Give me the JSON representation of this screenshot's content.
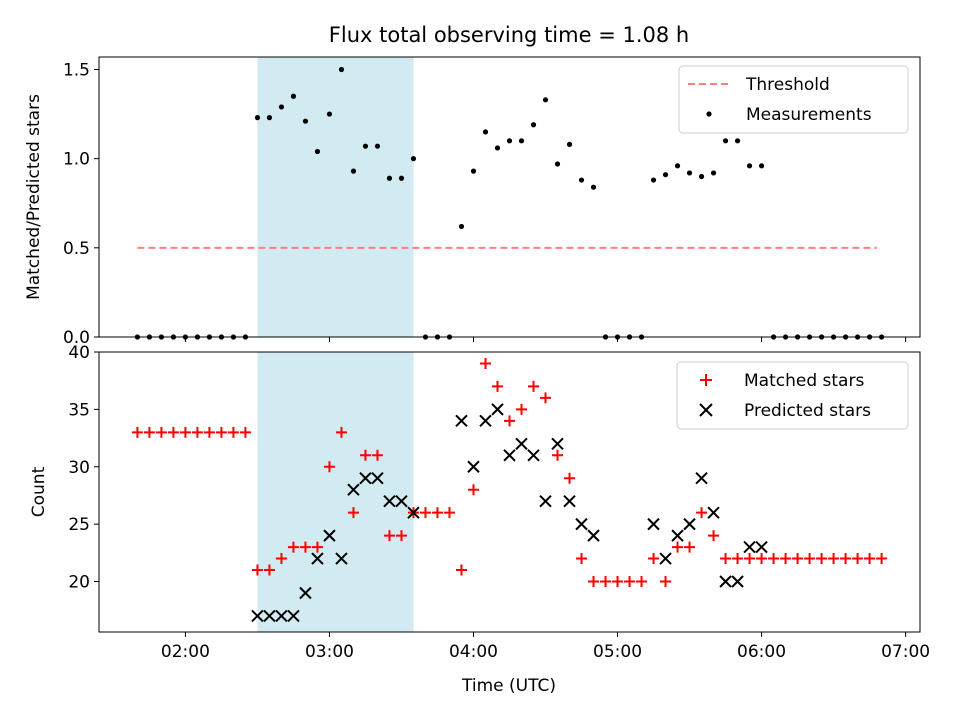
{
  "chart_data": [
    {
      "type": "scatter",
      "title": "Flux total observing time = 1.08 h",
      "xlabel": "",
      "ylabel": "Matched/Predicted stars",
      "xlim": [
        "01:24",
        "07:06"
      ],
      "ylim": [
        0,
        1.57
      ],
      "xticks": [
        "02:00",
        "03:00",
        "04:00",
        "05:00",
        "06:00",
        "07:00"
      ],
      "yticks": [
        "0.0",
        "0.5",
        "1.0",
        "1.5"
      ],
      "shaded_span": [
        "02:30",
        "03:35"
      ],
      "shaded_color": "#add8e6",
      "legend": "top-right",
      "threshold": {
        "name": "Threshold",
        "value": 0.5,
        "x": [
          "01:40",
          "06:48"
        ],
        "color": "#ff7f7f",
        "style": "dashed"
      },
      "series": [
        {
          "name": "Measurements",
          "marker": "dot",
          "color": "#000000",
          "x": [
            "01:40",
            "01:45",
            "01:50",
            "01:55",
            "02:00",
            "02:05",
            "02:10",
            "02:15",
            "02:20",
            "02:25",
            "02:30",
            "02:35",
            "02:40",
            "02:45",
            "02:50",
            "02:55",
            "03:00",
            "03:05",
            "03:10",
            "03:15",
            "03:20",
            "03:25",
            "03:30",
            "03:35",
            "03:40",
            "03:45",
            "03:50",
            "03:55",
            "04:00",
            "04:05",
            "04:10",
            "04:15",
            "04:20",
            "04:25",
            "04:30",
            "04:35",
            "04:40",
            "04:45",
            "04:50",
            "04:55",
            "05:00",
            "05:05",
            "05:10",
            "05:15",
            "05:20",
            "05:25",
            "05:30",
            "05:35",
            "05:40",
            "05:45",
            "05:50",
            "05:55",
            "06:00",
            "06:05",
            "06:10",
            "06:15",
            "06:20",
            "06:25",
            "06:30",
            "06:35",
            "06:40",
            "06:45",
            "06:50"
          ],
          "y": [
            0,
            0,
            0,
            0,
            0,
            0,
            0,
            0,
            0,
            0,
            1.23,
            1.23,
            1.29,
            1.35,
            1.21,
            1.04,
            1.25,
            1.5,
            0.93,
            1.07,
            1.07,
            0.89,
            0.89,
            1.0,
            0,
            0,
            0,
            0.62,
            0.93,
            1.15,
            1.06,
            1.1,
            1.1,
            1.19,
            1.33,
            0.97,
            1.08,
            0.88,
            0.84,
            0,
            0,
            0,
            0,
            0.88,
            0.91,
            0.96,
            0.92,
            0.9,
            0.92,
            1.1,
            1.1,
            0.96,
            0.96,
            0,
            0,
            0,
            0,
            0,
            0,
            0,
            0,
            0,
            0
          ]
        }
      ]
    },
    {
      "type": "scatter",
      "title": "",
      "xlabel": "Time (UTC)",
      "ylabel": "Count",
      "xlim": [
        "01:24",
        "07:06"
      ],
      "ylim": [
        15.6,
        40
      ],
      "xticks": [
        "02:00",
        "03:00",
        "04:00",
        "05:00",
        "06:00",
        "07:00"
      ],
      "yticks": [
        "20",
        "25",
        "30",
        "35",
        "40"
      ],
      "shaded_span": [
        "02:30",
        "03:35"
      ],
      "shaded_color": "#add8e6",
      "legend": "top-right",
      "series": [
        {
          "name": "Matched stars",
          "marker": "plus",
          "color": "#ff0000",
          "x": [
            "01:40",
            "01:45",
            "01:50",
            "01:55",
            "02:00",
            "02:05",
            "02:10",
            "02:15",
            "02:20",
            "02:25",
            "02:30",
            "02:35",
            "02:40",
            "02:45",
            "02:50",
            "02:55",
            "03:00",
            "03:05",
            "03:10",
            "03:15",
            "03:20",
            "03:25",
            "03:30",
            "03:35",
            "03:40",
            "03:45",
            "03:50",
            "03:55",
            "04:00",
            "04:05",
            "04:10",
            "04:15",
            "04:20",
            "04:25",
            "04:30",
            "04:35",
            "04:40",
            "04:45",
            "04:50",
            "04:55",
            "05:00",
            "05:05",
            "05:10",
            "05:15",
            "05:20",
            "05:25",
            "05:30",
            "05:35",
            "05:40",
            "05:45",
            "05:50",
            "05:55",
            "06:00",
            "06:05",
            "06:10",
            "06:15",
            "06:20",
            "06:25",
            "06:30",
            "06:35",
            "06:40",
            "06:45",
            "06:50"
          ],
          "y": [
            33,
            33,
            33,
            33,
            33,
            33,
            33,
            33,
            33,
            33,
            21,
            21,
            22,
            23,
            23,
            23,
            30,
            33,
            26,
            31,
            31,
            24,
            24,
            26,
            26,
            26,
            26,
            21,
            28,
            39,
            37,
            34,
            35,
            37,
            36,
            31,
            29,
            22,
            20,
            20,
            20,
            20,
            20,
            22,
            20,
            23,
            23,
            26,
            24,
            22,
            22,
            22,
            22,
            22,
            22,
            22,
            22,
            22,
            22,
            22,
            22,
            22,
            22
          ]
        },
        {
          "name": "Predicted stars",
          "marker": "x",
          "color": "#000000",
          "x": [
            "02:30",
            "02:35",
            "02:40",
            "02:45",
            "02:50",
            "02:55",
            "03:00",
            "03:05",
            "03:10",
            "03:15",
            "03:20",
            "03:25",
            "03:30",
            "03:35",
            "03:55",
            "04:00",
            "04:05",
            "04:10",
            "04:15",
            "04:20",
            "04:25",
            "04:30",
            "04:35",
            "04:40",
            "04:45",
            "04:50",
            "05:15",
            "05:20",
            "05:25",
            "05:30",
            "05:35",
            "05:40",
            "05:45",
            "05:50",
            "05:55",
            "06:00"
          ],
          "y": [
            17,
            17,
            17,
            17,
            19,
            22,
            24,
            22,
            28,
            29,
            29,
            27,
            27,
            26,
            34,
            30,
            34,
            35,
            31,
            32,
            31,
            27,
            32,
            27,
            25,
            24,
            25,
            22,
            24,
            25,
            29,
            26,
            20,
            20,
            23,
            23
          ]
        }
      ]
    }
  ]
}
